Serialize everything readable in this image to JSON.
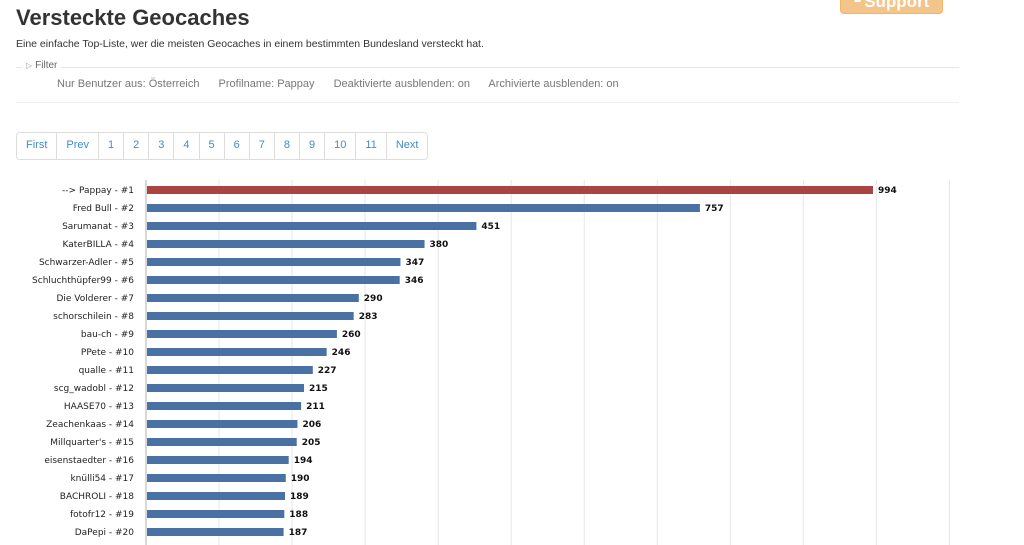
{
  "header": {
    "title": "Versteckte Geocaches",
    "description": "Eine einfache Top-Liste, wer die meisten Geocaches in einem bestimmten Bundesland versteckt hat.",
    "support_label": "Support"
  },
  "filter": {
    "legend": "Filter",
    "items": [
      "Nur Benutzer aus: Österreich",
      "Profilname: Pappay",
      "Deaktivierte ausblenden: on",
      "Archivierte ausblenden: on"
    ]
  },
  "pagination": [
    "First",
    "Prev",
    "1",
    "2",
    "3",
    "4",
    "5",
    "6",
    "7",
    "8",
    "9",
    "10",
    "11",
    "Next"
  ],
  "chart_data": {
    "type": "bar",
    "orientation": "horizontal",
    "categories": [
      "--> Pappay - #1",
      "Fred Bull - #2",
      "Sarumanat - #3",
      "KaterBILLA - #4",
      "Schwarzer-Adler - #5",
      "Schluchthüpfer99 - #6",
      "Die Volderer - #7",
      "schorschilein - #8",
      "bau-ch - #9",
      "PPete - #10",
      "qualle - #11",
      "scg_wadobl - #12",
      "HAASE70 - #13",
      "Zeachenkaas - #14",
      "Millquarter's - #15",
      "eisenstaedter - #16",
      "knülli54 - #17",
      "BACHROLI - #18",
      "fotofr12 - #19",
      "DaPepi - #20"
    ],
    "values": [
      994,
      757,
      451,
      380,
      347,
      346,
      290,
      283,
      260,
      246,
      227,
      215,
      211,
      206,
      205,
      194,
      190,
      189,
      188,
      187
    ],
    "highlight_index": 0,
    "colors": {
      "default": "#4a71a4",
      "highlight": "#a94442"
    },
    "xlim": [
      0,
      1100
    ],
    "grid": true,
    "title": "",
    "xlabel": "",
    "ylabel": ""
  }
}
